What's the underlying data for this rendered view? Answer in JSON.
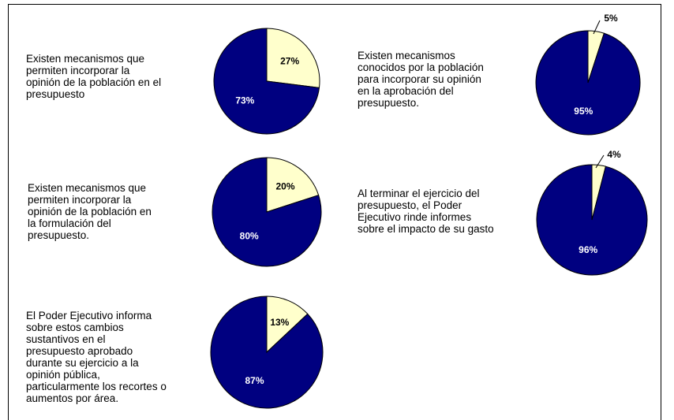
{
  "colors": {
    "yes": "#000080",
    "no": "#ffffcc",
    "outline": "#000000",
    "label_on_dark": "#ffffff",
    "label_on_light": "#000000"
  },
  "chart_data": [
    {
      "type": "pie",
      "question": "Existen mecanismos que\npermiten incorporar la\nopinión de la población en el\npresupuesto",
      "slices": [
        {
          "key": "no",
          "value": 27,
          "label": "27%"
        },
        {
          "key": "yes",
          "value": 73,
          "label": "73%"
        }
      ]
    },
    {
      "type": "pie",
      "question": "Existen mecanismos\nconocidos por la población\npara incorporar su opinión\nen la aprobación del\npresupuesto.",
      "slices": [
        {
          "key": "no",
          "value": 5,
          "label": "5%"
        },
        {
          "key": "yes",
          "value": 95,
          "label": "95%"
        }
      ]
    },
    {
      "type": "pie",
      "question": "Existen mecanismos que\npermiten incorporar la\nopinión de la población en\nla formulación del\npresupuesto.",
      "slices": [
        {
          "key": "no",
          "value": 20,
          "label": "20%"
        },
        {
          "key": "yes",
          "value": 80,
          "label": "80%"
        }
      ]
    },
    {
      "type": "pie",
      "question": "Al terminar el ejercicio del\npresupuesto, el Poder\nEjecutivo rinde informes\nsobre el impacto de su gasto",
      "slices": [
        {
          "key": "no",
          "value": 4,
          "label": "4%"
        },
        {
          "key": "yes",
          "value": 96,
          "label": "96%"
        }
      ]
    },
    {
      "type": "pie",
      "question": "El Poder Ejecutivo informa\nsobre estos cambios\nsustantivos en el\npresupuesto aprobado\ndurante su ejercicio a la\nopinión pública,\nparticularmente los recortes o\naumentos por área.",
      "slices": [
        {
          "key": "no",
          "value": 13,
          "label": "13%"
        },
        {
          "key": "yes",
          "value": 87,
          "label": "87%"
        }
      ]
    }
  ]
}
